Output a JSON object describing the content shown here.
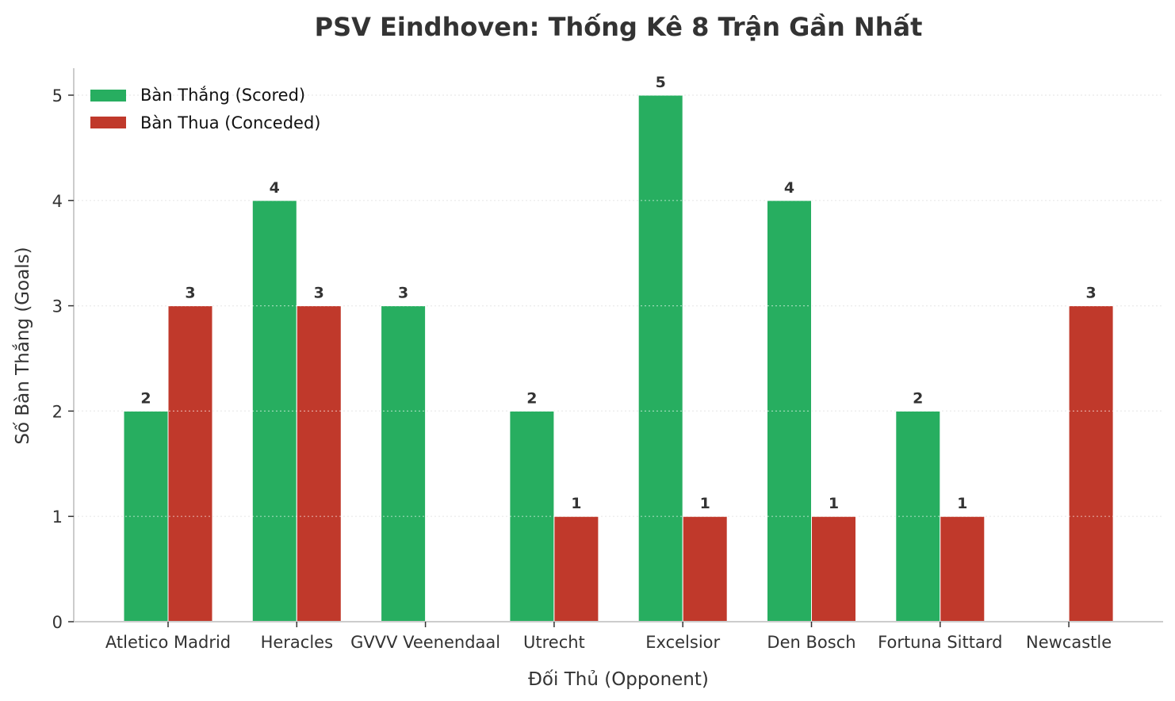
{
  "title": "PSV Eindhoven: Thống Kê 8 Trận Gần Nhất",
  "xlabel": "Đối Thủ (Opponent)",
  "ylabel": "Số Bàn Thắng (Goals)",
  "legend": [
    {
      "label": "Bàn Thắng (Scored)",
      "color": "#27ae60"
    },
    {
      "label": "Bàn Thua (Conceded)",
      "color": "#c0392b"
    }
  ],
  "colors": {
    "scored": "#27ae60",
    "conceded": "#c0392b",
    "text": "#333333",
    "grid": "#cccccc",
    "axis": "#cccccc"
  },
  "chart_data": {
    "type": "bar",
    "title": "PSV Eindhoven: Thống Kê 8 Trận Gần Nhất",
    "xlabel": "Đối Thủ (Opponent)",
    "ylabel": "Số Bàn Thắng (Goals)",
    "categories": [
      "Atletico Madrid",
      "Heracles",
      "GVVV Veenendaal",
      "Utrecht",
      "Excelsior",
      "Den Bosch",
      "Fortuna Sittard",
      "Newcastle"
    ],
    "series": [
      {
        "name": "Bàn Thắng (Scored)",
        "color": "#27ae60",
        "values": [
          2,
          4,
          3,
          2,
          5,
          4,
          2,
          0
        ]
      },
      {
        "name": "Bàn Thua (Conceded)",
        "color": "#c0392b",
        "values": [
          3,
          3,
          0,
          1,
          1,
          1,
          1,
          3
        ]
      }
    ],
    "yticks": [
      0,
      1,
      2,
      3,
      4,
      5
    ],
    "ylim": [
      0,
      5.25
    ],
    "grid": {
      "axis": "y",
      "style": "dotted"
    },
    "legend_position": "upper left",
    "bar_labels": "value above non-zero bars"
  }
}
